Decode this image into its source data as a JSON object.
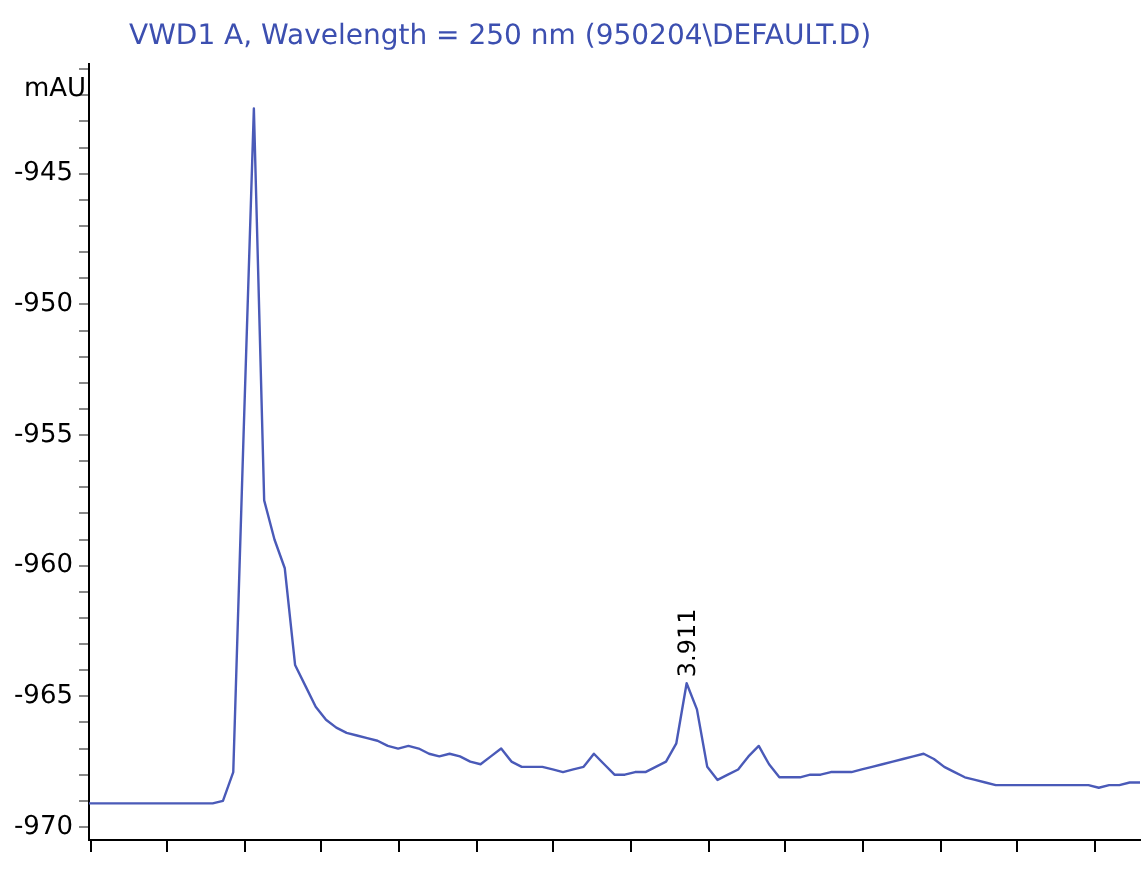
{
  "chart_data": {
    "type": "line",
    "title": "VWD1 A, Wavelength = 250 nm (950204\\DEFAULT.D)",
    "ylabel": "mAU",
    "categories": [
      null,
      null,
      null,
      null,
      null,
      null,
      null,
      null,
      null,
      null,
      null,
      null,
      null,
      null,
      null,
      null,
      null,
      null,
      null,
      null,
      null,
      null,
      null,
      null,
      null,
      null,
      null,
      null,
      null,
      null,
      null,
      null,
      null,
      null,
      null,
      null,
      null,
      null,
      null,
      null,
      null,
      null,
      null,
      null,
      null,
      null,
      null,
      null,
      null,
      null,
      null,
      null,
      null,
      null,
      null,
      null,
      null,
      null,
      null,
      null,
      null,
      null,
      null,
      null,
      null,
      null,
      null,
      null,
      null,
      null,
      null,
      null,
      null,
      null,
      null,
      null,
      null,
      null,
      null,
      null,
      null,
      null,
      null,
      null,
      null,
      null,
      null,
      null,
      null,
      null,
      null,
      null,
      null,
      null,
      null,
      null,
      null,
      null,
      null,
      null,
      null,
      null,
      null
    ],
    "ylim": [
      -970.5,
      -940.8
    ],
    "yticks": [
      -970,
      {
        "value": -969,
        "label": null
      },
      {
        "value": -968,
        "label": null
      },
      {
        "value": -967,
        "label": null
      },
      {
        "value": -966,
        "label": null
      },
      -965,
      {
        "value": -964,
        "label": null
      },
      {
        "value": -963,
        "label": null
      },
      {
        "value": -962,
        "label": null
      },
      {
        "value": -961,
        "label": null
      },
      -960,
      {
        "value": -959,
        "label": null
      },
      {
        "value": -958,
        "label": null
      },
      {
        "value": -957,
        "label": null
      },
      {
        "value": -956,
        "label": null
      },
      -955,
      {
        "value": -954,
        "label": null
      },
      {
        "value": -953,
        "label": null
      },
      {
        "value": -952,
        "label": null
      },
      {
        "value": -951,
        "label": null
      },
      -950,
      {
        "value": -949,
        "label": null
      },
      {
        "value": -948,
        "label": null
      },
      {
        "value": -947,
        "label": null
      },
      {
        "value": -946,
        "label": null
      },
      -945,
      {
        "value": -944,
        "label": null
      },
      {
        "value": -943,
        "label": null
      },
      {
        "value": -942,
        "label": null
      },
      {
        "value": -941,
        "label": null
      }
    ],
    "tick_labels": "y",
    "legend": false,
    "series": [
      {
        "color": "#4a5ab8",
        "values": [
          -969.1,
          -969.1,
          -969.1,
          -969.1,
          -969.1,
          -969.1,
          -969.1,
          -969.1,
          -969.1,
          -969.1,
          -969.1,
          -969.1,
          -969.1,
          -969.0,
          -967.9,
          -955.0,
          -942.5,
          -957.5,
          -959.0,
          -960.1,
          -963.8,
          -964.6,
          -965.4,
          -965.9,
          -966.2,
          -966.4,
          -966.5,
          -966.6,
          -966.7,
          -966.9,
          -967.0,
          -966.9,
          -967.0,
          -967.2,
          -967.3,
          -967.2,
          -967.3,
          -967.5,
          -967.6,
          -967.3,
          -967.0,
          -967.5,
          -967.7,
          -967.7,
          -967.7,
          -967.8,
          -967.9,
          -967.8,
          -967.7,
          -967.2,
          -967.6,
          -968.0,
          -968.0,
          -967.9,
          -967.9,
          -967.7,
          -967.5,
          -966.8,
          -964.5,
          -965.5,
          -967.7,
          -968.2,
          -968.0,
          -967.8,
          -967.3,
          -966.9,
          -967.6,
          -968.1,
          -968.1,
          -968.1,
          -968.0,
          -968.0,
          -967.9,
          -967.9,
          -967.9,
          -967.8,
          -967.7,
          -967.6,
          -967.5,
          -967.4,
          -967.3,
          -967.2,
          -967.4,
          -967.7,
          -967.9,
          -968.1,
          -968.2,
          -968.3,
          -968.4,
          -968.4,
          -968.4,
          -968.4,
          -968.4,
          -968.4,
          -968.4,
          -968.4,
          -968.4,
          -968.4,
          -968.5,
          -968.4,
          -968.4,
          -968.3,
          -968.3
        ]
      }
    ],
    "annotations": [
      {
        "text": "3.911",
        "y": -964.5
      }
    ]
  }
}
